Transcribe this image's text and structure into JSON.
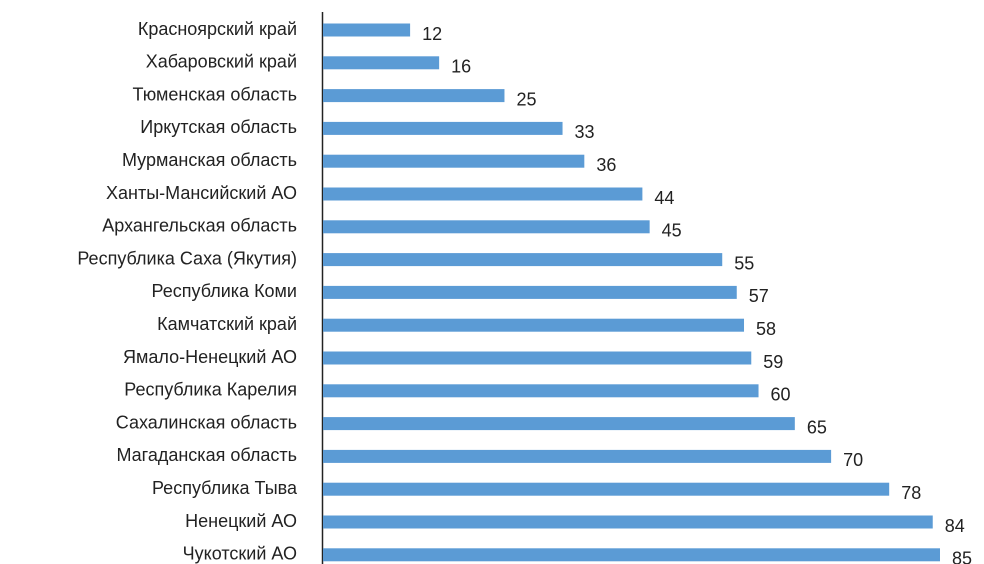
{
  "chart_data": {
    "type": "bar",
    "orientation": "horizontal",
    "categories": [
      "Красноярский край",
      "Хабаровский край",
      "Тюменская область",
      "Иркутская область",
      "Мурманская область",
      "Ханты-Мансийский АО",
      "Архангельская область",
      "Республика Саха (Якутия)",
      "Республика Коми",
      "Камчатский край",
      "Ямало-Ненецкий АО",
      "Республика Карелия",
      "Сахалинская область",
      "Магаданская область",
      "Республика Тыва",
      "Ненецкий АО",
      "Чукотский АО"
    ],
    "values": [
      12,
      16,
      25,
      33,
      36,
      44,
      45,
      55,
      57,
      58,
      59,
      60,
      65,
      70,
      78,
      84,
      85
    ],
    "color": "#5b9bd5",
    "data_labels": true
  }
}
